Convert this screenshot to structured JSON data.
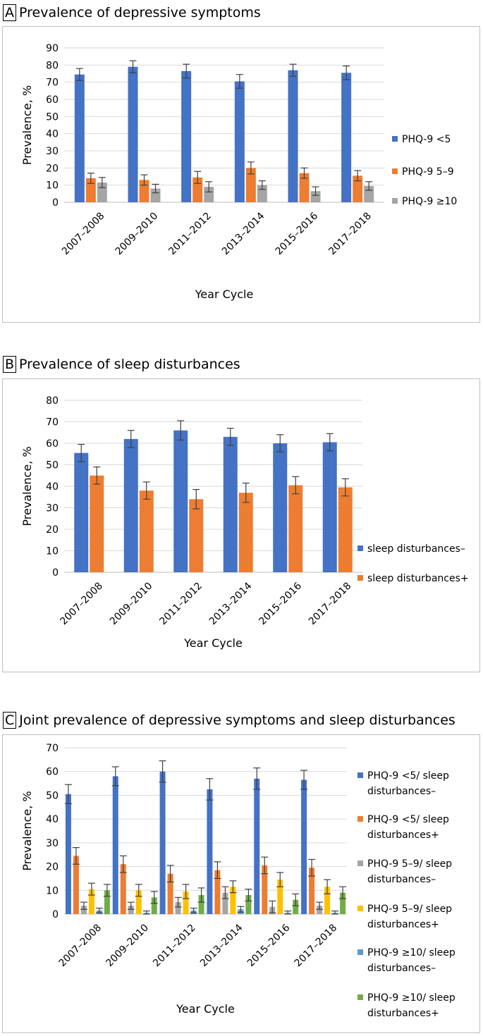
{
  "chart_data": [
    {
      "id": "A",
      "type": "bar",
      "panel_letter": "A",
      "title": "Prevalence of depressive symptoms",
      "xlabel": "Year Cycle",
      "ylabel": "Prevalence, %",
      "ylim": [
        0,
        90
      ],
      "yticks": [
        0,
        10,
        20,
        30,
        40,
        50,
        60,
        70,
        80,
        90
      ],
      "grid": true,
      "legend_position": "right",
      "categories": [
        "2007–2008",
        "2009–2010",
        "2011–2012",
        "2013–2014",
        "2015–2016",
        "2017–2018"
      ],
      "series": [
        {
          "name": "PHQ-9 <5",
          "color": "#4472C4",
          "values": [
            74.5,
            79,
            76.5,
            70.5,
            77,
            75.5
          ],
          "errors": [
            3.5,
            3.5,
            4,
            4,
            3.5,
            4
          ]
        },
        {
          "name": "PHQ-9 5–9",
          "color": "#ED7D31",
          "values": [
            14,
            13,
            14.5,
            20,
            17,
            15.5
          ],
          "errors": [
            3,
            3,
            3.5,
            3.5,
            3,
            3
          ]
        },
        {
          "name": "PHQ-9 ≥10",
          "color": "#A5A5A5",
          "values": [
            11.5,
            8,
            9,
            10,
            6.5,
            9.5
          ],
          "errors": [
            3,
            2.5,
            3,
            2.5,
            2.5,
            2.5
          ]
        }
      ]
    },
    {
      "id": "B",
      "type": "bar",
      "panel_letter": "B",
      "title": "Prevalence of sleep disturbances",
      "xlabel": "Year Cycle",
      "ylabel": "Prevalence, %",
      "ylim": [
        0,
        80
      ],
      "yticks": [
        0,
        10,
        20,
        30,
        40,
        50,
        60,
        70,
        80
      ],
      "grid": true,
      "legend_position": "right",
      "categories": [
        "2007–2008",
        "2009–2010",
        "2011–2012",
        "2013–2014",
        "2015–2016",
        "2017–2018"
      ],
      "series": [
        {
          "name": "sleep disturbances–",
          "color": "#4472C4",
          "values": [
            55.5,
            62,
            66,
            63,
            60,
            60.5
          ],
          "errors": [
            4,
            4,
            4.5,
            4,
            4,
            4
          ]
        },
        {
          "name": "sleep disturbances+",
          "color": "#ED7D31",
          "values": [
            45,
            38,
            34,
            37,
            40.5,
            39.5
          ],
          "errors": [
            4,
            4,
            4.5,
            4.5,
            4,
            4
          ]
        }
      ]
    },
    {
      "id": "C",
      "type": "bar",
      "panel_letter": "C",
      "title": "Joint prevalence of depressive symptoms and sleep disturbances",
      "xlabel": "Year Cycle",
      "ylabel": "Prevalence, %",
      "ylim": [
        0,
        70
      ],
      "yticks": [
        0,
        10,
        20,
        30,
        40,
        50,
        60,
        70
      ],
      "grid": true,
      "legend_position": "right",
      "categories": [
        "2007–2008",
        "2009–2010",
        "2011–2012",
        "2013–2014",
        "2015–2016",
        "2017–2018"
      ],
      "series": [
        {
          "name": "PHQ-9 <5/ sleep disturbances–",
          "legend_lines": [
            "PHQ-9 <5/ sleep",
            "disturbances–"
          ],
          "color": "#4472C4",
          "values": [
            50.5,
            58,
            60,
            52.5,
            57,
            56.5
          ],
          "errors": [
            4,
            4,
            4.5,
            4.5,
            4.5,
            4
          ]
        },
        {
          "name": "PHQ-9 <5/ sleep disturbances+",
          "legend_lines": [
            "PHQ-9 <5/ sleep",
            "disturbances+"
          ],
          "color": "#ED7D31",
          "values": [
            24.5,
            21,
            17,
            18.5,
            20.5,
            19.5
          ],
          "errors": [
            3.5,
            3.5,
            3.5,
            3.5,
            3.5,
            3.5
          ]
        },
        {
          "name": "PHQ-9 5–9/ sleep disturbances–",
          "legend_lines": [
            "PHQ-9 5–9/ sleep",
            "disturbances–"
          ],
          "color": "#A5A5A5",
          "values": [
            3.5,
            3.5,
            5,
            9,
            3,
            3.5
          ],
          "errors": [
            1.5,
            1.5,
            2,
            2.5,
            2.5,
            1.5
          ]
        },
        {
          "name": "PHQ-9 5–9/ sleep disturbances+",
          "legend_lines": [
            "PHQ-9 5–9/ sleep",
            "disturbances+"
          ],
          "color": "#FFC000",
          "values": [
            10.5,
            10,
            9.5,
            11.5,
            14.5,
            11.5
          ],
          "errors": [
            2.5,
            2.5,
            3,
            2.5,
            3,
            3
          ]
        },
        {
          "name": "PHQ-9 ≥10/ sleep disturbances–",
          "legend_lines": [
            "PHQ-9 ≥10/ sleep",
            "disturbances–"
          ],
          "color": "#5B9BD5",
          "values": [
            1.5,
            0.5,
            1.5,
            2,
            0.5,
            0.5
          ],
          "errors": [
            1,
            0.8,
            1,
            1.2,
            0.8,
            0.8
          ]
        },
        {
          "name": "PHQ-9 ≥10/ sleep disturbances+",
          "legend_lines": [
            "PHQ-9 ≥10/ sleep",
            "disturbances+"
          ],
          "color": "#70AD47",
          "values": [
            10,
            7,
            8,
            8,
            6,
            9
          ],
          "errors": [
            2.5,
            2.5,
            3,
            2.5,
            2.5,
            2.5
          ]
        }
      ]
    }
  ]
}
